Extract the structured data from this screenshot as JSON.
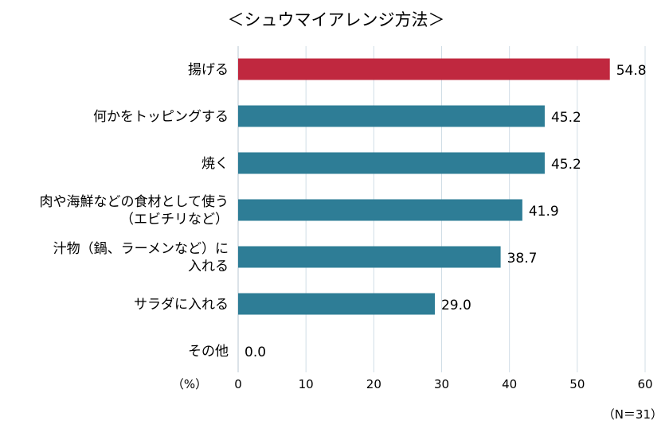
{
  "chart_data": {
    "type": "bar",
    "orientation": "horizontal",
    "title": "＜シュウマイアレンジ方法＞",
    "categories": [
      [
        "揚げる"
      ],
      [
        "何かをトッピングする"
      ],
      [
        "焼く"
      ],
      [
        "肉や海鮮などの食材として使う",
        "（エビチリなど）"
      ],
      [
        "汁物（鍋、ラーメンなど）に",
        "入れる"
      ],
      [
        "サラダに入れる"
      ],
      [
        "その他"
      ]
    ],
    "values": [
      54.8,
      45.2,
      45.2,
      41.9,
      38.7,
      29.0,
      0.0
    ],
    "value_labels": [
      "54.8",
      "45.2",
      "45.2",
      "41.9",
      "38.7",
      "29.0",
      "0.0"
    ],
    "highlight_index": 0,
    "colors": {
      "highlight": "#c0283f",
      "default": "#2e7d96",
      "grid": "#d0dde6"
    },
    "xlim": [
      0,
      60
    ],
    "xticks": [
      "0",
      "10",
      "20",
      "30",
      "40",
      "50",
      "60"
    ],
    "unit_label": "（%）",
    "sample_note": "（N＝31）",
    "grid": true
  }
}
